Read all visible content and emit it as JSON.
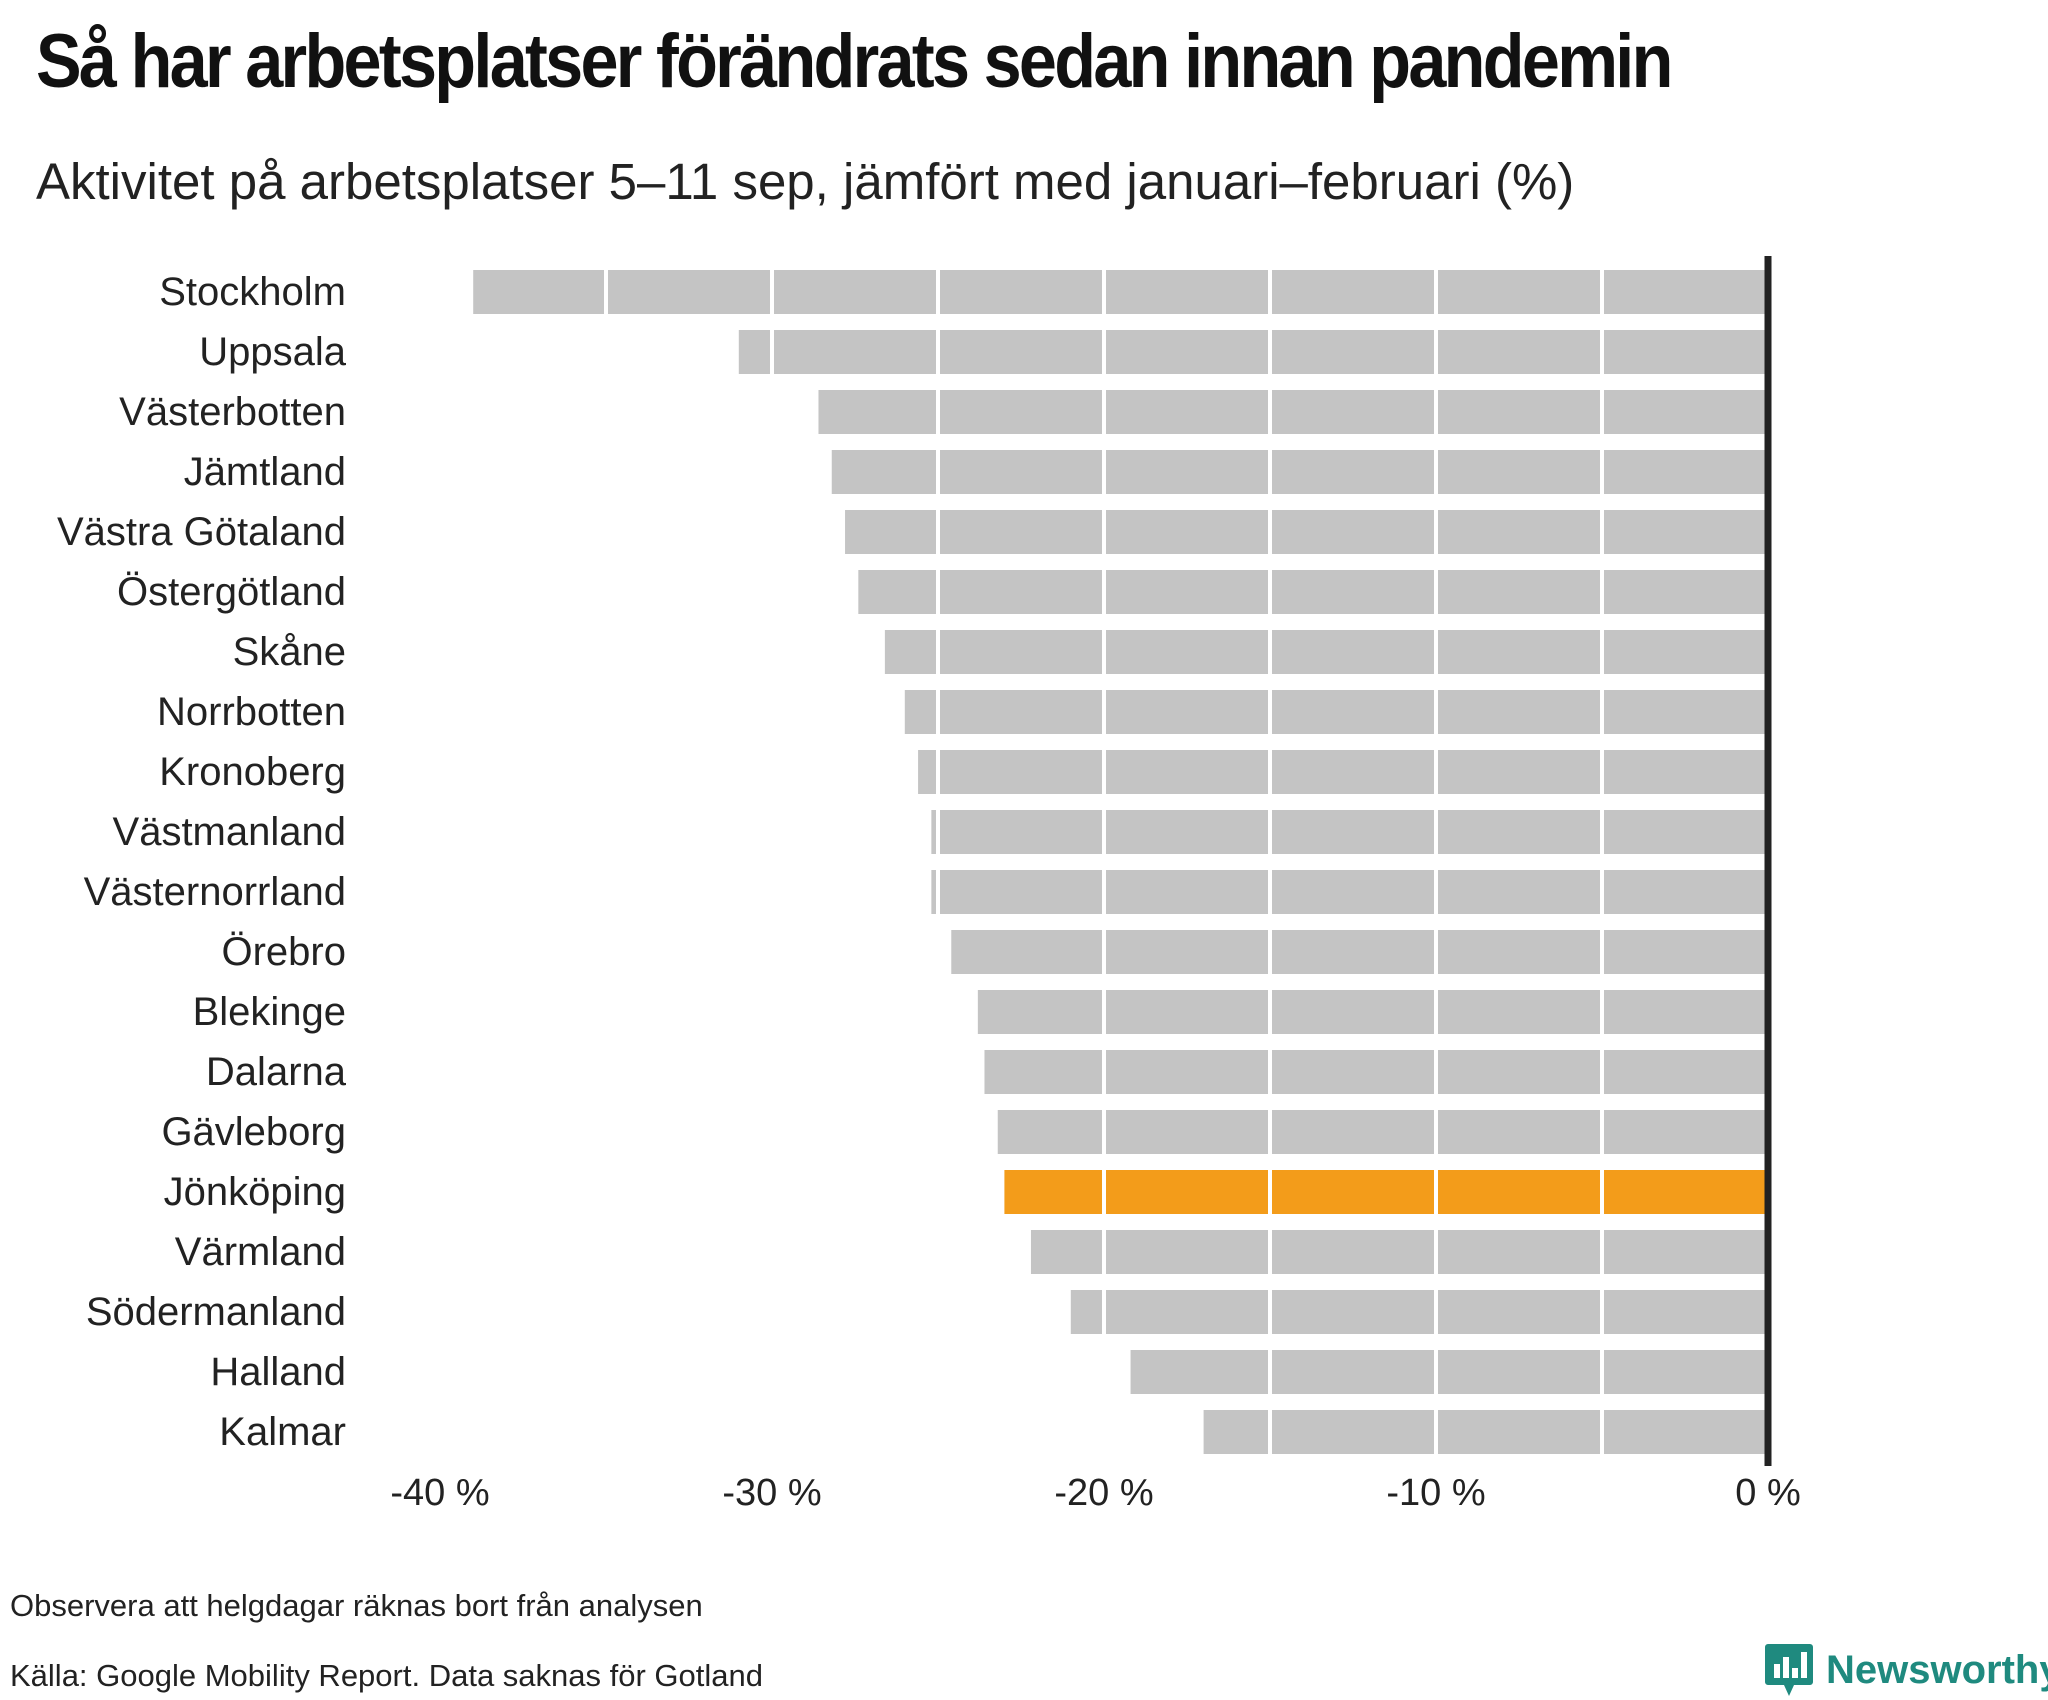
{
  "title": "Så har arbetsplatser förändrats sedan innan pandemin",
  "subtitle": "Aktivitet på arbetsplatser 5–11 sep, jämfört med januari–februari (%)",
  "note": "Observera att helgdagar räknas bort från analysen",
  "source": "Källa: Google Mobility Report. Data saknas för Gotland",
  "brand": {
    "name": "Newsworthy",
    "icon": "newsworthy-logo-icon",
    "color": "#1f8a7f"
  },
  "colors": {
    "bar": "#c4c4c4",
    "highlight": "#f39c1a",
    "zero_line": "#222222",
    "grid": "#ffffff"
  },
  "chart_data": {
    "type": "bar",
    "orientation": "horizontal",
    "categories": [
      "Stockholm",
      "Uppsala",
      "Västerbotten",
      "Jämtland",
      "Västra Götaland",
      "Östergötland",
      "Skåne",
      "Norrbotten",
      "Kronoberg",
      "Västmanland",
      "Västernorrland",
      "Örebro",
      "Blekinge",
      "Dalarna",
      "Gävleborg",
      "Jönköping",
      "Värmland",
      "Södermanland",
      "Halland",
      "Kalmar"
    ],
    "values": [
      -39,
      -31,
      -28.6,
      -28.2,
      -27.8,
      -27.4,
      -26.6,
      -26,
      -25.6,
      -25.2,
      -25.2,
      -24.6,
      -23.8,
      -23.6,
      -23.2,
      -23,
      -22.2,
      -21,
      -19.2,
      -17
    ],
    "highlight": "Jönköping",
    "xlim": [
      -40,
      0
    ],
    "xticks": [
      -40,
      -30,
      -20,
      -10,
      0
    ],
    "xtick_labels": [
      "-40 %",
      "-30 %",
      "-20 %",
      "-10 %",
      "0 %"
    ],
    "gridlines": [
      -35,
      -30,
      -25,
      -20,
      -15,
      -10,
      -5
    ],
    "title": "Så har arbetsplatser förändrats sedan innan pandemin",
    "xlabel": "",
    "ylabel": ""
  }
}
